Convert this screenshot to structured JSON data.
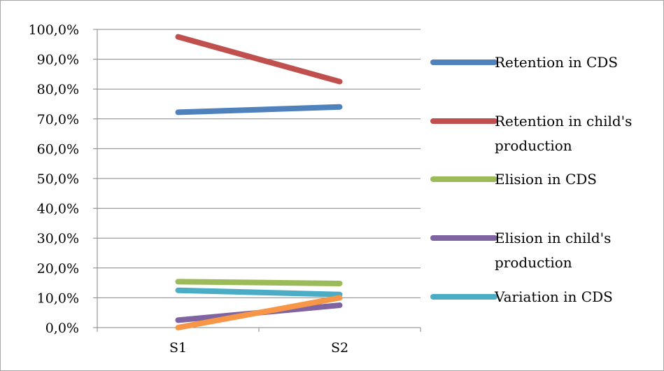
{
  "chart_data": {
    "type": "line",
    "categories": [
      "S1",
      "S2"
    ],
    "ylim": [
      0,
      100
    ],
    "y_ticks": [
      "0,0%",
      "10,0%",
      "20,0%",
      "30,0%",
      "40,0%",
      "50,0%",
      "60,0%",
      "70,0%",
      "80,0%",
      "90,0%",
      "100,0%"
    ],
    "grid": "horizontal",
    "legend_position": "right",
    "series": [
      {
        "name": "Retention in CDS",
        "color": "#4f81bd",
        "values": [
          72.2,
          74.0
        ],
        "legend_lines": [
          "Retention in CDS"
        ]
      },
      {
        "name": "Retention in child's production",
        "color": "#c0504d",
        "values": [
          97.5,
          82.5
        ],
        "legend_lines": [
          "Retention in child's",
          "production"
        ]
      },
      {
        "name": "Elision in CDS",
        "color": "#9bbb59",
        "values": [
          15.4,
          14.8
        ],
        "legend_lines": [
          "Elision in CDS"
        ]
      },
      {
        "name": "Elision in child's production",
        "color": "#8064a2",
        "values": [
          2.5,
          7.5
        ],
        "legend_lines": [
          "Elision in child's",
          "production"
        ]
      },
      {
        "name": "Variation in CDS",
        "color": "#4bacc6",
        "values": [
          12.5,
          11.1
        ],
        "legend_lines": [
          "Variation in CDS"
        ]
      },
      {
        "name": "",
        "color": "#f79646",
        "values": [
          0.0,
          10.0
        ],
        "legend_lines": []
      }
    ]
  }
}
